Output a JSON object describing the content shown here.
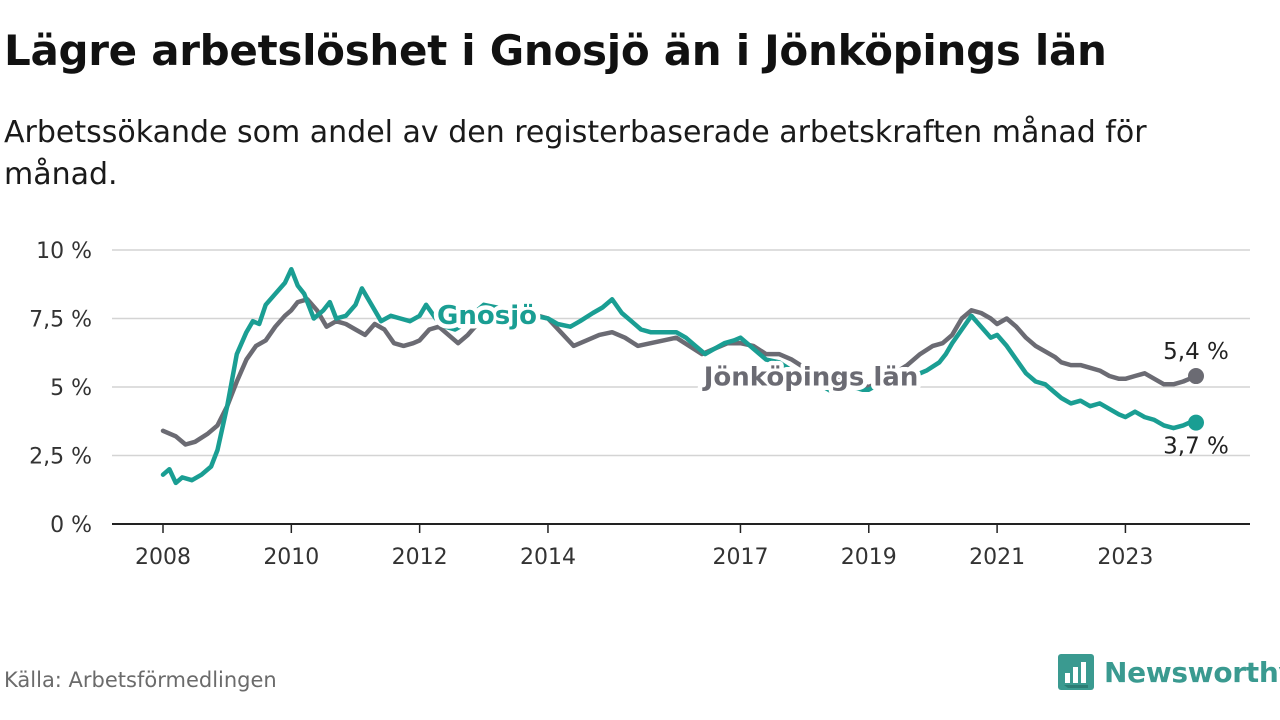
{
  "title": "Lägre arbetslöshet i Gnosjö än i Jönköpings län",
  "subtitle": "Arbetssökande som andel av den registerbaserade arbetskraften månad för månad.",
  "source": "Källa: Arbetsförmedlingen",
  "brand": {
    "name": "Newsworthy",
    "icon": "newsworthy-logo-icon",
    "color": "#3a9a90"
  },
  "colors": {
    "gnosjo": "#1a9e93",
    "lan": "#6b6b73",
    "grid": "#d4d4d4",
    "axis": "#222222"
  },
  "chart_data": {
    "type": "line",
    "title": "Lägre arbetslöshet i Gnosjö än i Jönköpings län",
    "xlabel": "",
    "ylabel": "",
    "xlim": [
      2008.0,
      2024.8
    ],
    "ylim": [
      0,
      10
    ],
    "yticks": [
      {
        "value": 0,
        "label": "0 %"
      },
      {
        "value": 2.5,
        "label": "2,5 %"
      },
      {
        "value": 5,
        "label": "5 %"
      },
      {
        "value": 7.5,
        "label": "7,5 %"
      },
      {
        "value": 10,
        "label": "10 %"
      }
    ],
    "xticks": [
      {
        "value": 2008.0,
        "label": "2008"
      },
      {
        "value": 2010.0,
        "label": "2010"
      },
      {
        "value": 2012.0,
        "label": "2012"
      },
      {
        "value": 2014.0,
        "label": "2014"
      },
      {
        "value": 2017.0,
        "label": "2017"
      },
      {
        "value": 2019.0,
        "label": "2019"
      },
      {
        "value": 2021.0,
        "label": "2021"
      },
      {
        "value": 2023.0,
        "label": "2023"
      }
    ],
    "grid": true,
    "series": [
      {
        "name": "Jönköpings län",
        "label": "Jönköpings län",
        "end_label": "5,4 %",
        "end_value": 5.4,
        "points": [
          [
            2008.0,
            3.4
          ],
          [
            2008.2,
            3.2
          ],
          [
            2008.35,
            2.9
          ],
          [
            2008.5,
            3.0
          ],
          [
            2008.7,
            3.3
          ],
          [
            2008.85,
            3.6
          ],
          [
            2009.0,
            4.3
          ],
          [
            2009.15,
            5.2
          ],
          [
            2009.3,
            6.0
          ],
          [
            2009.45,
            6.5
          ],
          [
            2009.6,
            6.7
          ],
          [
            2009.75,
            7.2
          ],
          [
            2009.9,
            7.6
          ],
          [
            2010.0,
            7.8
          ],
          [
            2010.1,
            8.1
          ],
          [
            2010.25,
            8.2
          ],
          [
            2010.4,
            7.8
          ],
          [
            2010.55,
            7.2
          ],
          [
            2010.7,
            7.4
          ],
          [
            2010.85,
            7.3
          ],
          [
            2011.0,
            7.1
          ],
          [
            2011.15,
            6.9
          ],
          [
            2011.3,
            7.3
          ],
          [
            2011.45,
            7.1
          ],
          [
            2011.6,
            6.6
          ],
          [
            2011.75,
            6.5
          ],
          [
            2011.9,
            6.6
          ],
          [
            2012.0,
            6.7
          ],
          [
            2012.15,
            7.1
          ],
          [
            2012.3,
            7.2
          ],
          [
            2012.45,
            6.9
          ],
          [
            2012.6,
            6.6
          ],
          [
            2012.75,
            6.9
          ],
          [
            2012.9,
            7.3
          ],
          [
            2013.1,
            7.5
          ],
          [
            2013.4,
            7.6
          ],
          [
            2013.7,
            7.7
          ],
          [
            2014.0,
            7.5
          ],
          [
            2014.2,
            7.0
          ],
          [
            2014.4,
            6.5
          ],
          [
            2014.6,
            6.7
          ],
          [
            2014.8,
            6.9
          ],
          [
            2015.0,
            7.0
          ],
          [
            2015.2,
            6.8
          ],
          [
            2015.4,
            6.5
          ],
          [
            2015.6,
            6.6
          ],
          [
            2015.8,
            6.7
          ],
          [
            2016.0,
            6.8
          ],
          [
            2016.2,
            6.5
          ],
          [
            2016.4,
            6.2
          ],
          [
            2016.6,
            6.4
          ],
          [
            2016.8,
            6.6
          ],
          [
            2017.0,
            6.6
          ],
          [
            2017.2,
            6.5
          ],
          [
            2017.4,
            6.2
          ],
          [
            2017.6,
            6.2
          ],
          [
            2017.8,
            6.0
          ],
          [
            2018.0,
            5.7
          ],
          [
            2018.2,
            5.5
          ],
          [
            2018.4,
            5.3
          ],
          [
            2018.6,
            5.2
          ],
          [
            2018.8,
            5.1
          ],
          [
            2019.0,
            5.0
          ],
          [
            2019.2,
            5.2
          ],
          [
            2019.4,
            5.5
          ],
          [
            2019.6,
            5.8
          ],
          [
            2019.8,
            6.2
          ],
          [
            2020.0,
            6.5
          ],
          [
            2020.15,
            6.6
          ],
          [
            2020.3,
            6.9
          ],
          [
            2020.45,
            7.5
          ],
          [
            2020.6,
            7.8
          ],
          [
            2020.75,
            7.7
          ],
          [
            2020.9,
            7.5
          ],
          [
            2021.0,
            7.3
          ],
          [
            2021.15,
            7.5
          ],
          [
            2021.3,
            7.2
          ],
          [
            2021.45,
            6.8
          ],
          [
            2021.6,
            6.5
          ],
          [
            2021.75,
            6.3
          ],
          [
            2021.9,
            6.1
          ],
          [
            2022.0,
            5.9
          ],
          [
            2022.15,
            5.8
          ],
          [
            2022.3,
            5.8
          ],
          [
            2022.45,
            5.7
          ],
          [
            2022.6,
            5.6
          ],
          [
            2022.75,
            5.4
          ],
          [
            2022.9,
            5.3
          ],
          [
            2023.0,
            5.3
          ],
          [
            2023.15,
            5.4
          ],
          [
            2023.3,
            5.5
          ],
          [
            2023.45,
            5.3
          ],
          [
            2023.6,
            5.1
          ],
          [
            2023.75,
            5.1
          ],
          [
            2023.9,
            5.2
          ],
          [
            2024.0,
            5.3
          ],
          [
            2024.1,
            5.4
          ]
        ]
      },
      {
        "name": "Gnosjö",
        "label": "Gnosjö",
        "end_label": "3,7 %",
        "end_value": 3.7,
        "points": [
          [
            2008.0,
            1.8
          ],
          [
            2008.1,
            2.0
          ],
          [
            2008.2,
            1.5
          ],
          [
            2008.3,
            1.7
          ],
          [
            2008.45,
            1.6
          ],
          [
            2008.6,
            1.8
          ],
          [
            2008.75,
            2.1
          ],
          [
            2008.85,
            2.7
          ],
          [
            2009.0,
            4.3
          ],
          [
            2009.15,
            6.2
          ],
          [
            2009.3,
            7.0
          ],
          [
            2009.4,
            7.4
          ],
          [
            2009.5,
            7.3
          ],
          [
            2009.6,
            8.0
          ],
          [
            2009.75,
            8.4
          ],
          [
            2009.9,
            8.8
          ],
          [
            2010.0,
            9.3
          ],
          [
            2010.1,
            8.7
          ],
          [
            2010.2,
            8.4
          ],
          [
            2010.35,
            7.5
          ],
          [
            2010.5,
            7.8
          ],
          [
            2010.6,
            8.1
          ],
          [
            2010.7,
            7.5
          ],
          [
            2010.85,
            7.6
          ],
          [
            2011.0,
            8.0
          ],
          [
            2011.1,
            8.6
          ],
          [
            2011.25,
            8.0
          ],
          [
            2011.4,
            7.4
          ],
          [
            2011.55,
            7.6
          ],
          [
            2011.7,
            7.5
          ],
          [
            2011.85,
            7.4
          ],
          [
            2012.0,
            7.6
          ],
          [
            2012.1,
            8.0
          ],
          [
            2012.25,
            7.5
          ],
          [
            2012.4,
            7.2
          ],
          [
            2012.55,
            7.1
          ],
          [
            2012.7,
            7.3
          ],
          [
            2012.85,
            7.7
          ],
          [
            2013.0,
            8.0
          ],
          [
            2013.2,
            7.9
          ],
          [
            2013.4,
            7.7
          ],
          [
            2013.6,
            7.8
          ],
          [
            2013.8,
            7.6
          ],
          [
            2014.0,
            7.5
          ],
          [
            2014.15,
            7.3
          ],
          [
            2014.35,
            7.2
          ],
          [
            2014.5,
            7.4
          ],
          [
            2014.7,
            7.7
          ],
          [
            2014.85,
            7.9
          ],
          [
            2015.0,
            8.2
          ],
          [
            2015.15,
            7.7
          ],
          [
            2015.3,
            7.4
          ],
          [
            2015.45,
            7.1
          ],
          [
            2015.6,
            7.0
          ],
          [
            2015.8,
            7.0
          ],
          [
            2016.0,
            7.0
          ],
          [
            2016.15,
            6.8
          ],
          [
            2016.3,
            6.5
          ],
          [
            2016.45,
            6.2
          ],
          [
            2016.6,
            6.4
          ],
          [
            2016.75,
            6.6
          ],
          [
            2016.9,
            6.7
          ],
          [
            2017.0,
            6.8
          ],
          [
            2017.2,
            6.4
          ],
          [
            2017.4,
            6.0
          ],
          [
            2017.6,
            5.9
          ],
          [
            2017.8,
            5.6
          ],
          [
            2018.0,
            5.5
          ],
          [
            2018.15,
            5.2
          ],
          [
            2018.3,
            5.0
          ],
          [
            2018.45,
            4.8
          ],
          [
            2018.6,
            5.0
          ],
          [
            2018.75,
            5.0
          ],
          [
            2018.9,
            4.9
          ],
          [
            2019.0,
            4.9
          ],
          [
            2019.15,
            5.1
          ],
          [
            2019.3,
            5.2
          ],
          [
            2019.5,
            5.3
          ],
          [
            2019.7,
            5.4
          ],
          [
            2019.9,
            5.6
          ],
          [
            2020.1,
            5.9
          ],
          [
            2020.2,
            6.2
          ],
          [
            2020.3,
            6.6
          ],
          [
            2020.45,
            7.1
          ],
          [
            2020.6,
            7.6
          ],
          [
            2020.75,
            7.2
          ],
          [
            2020.9,
            6.8
          ],
          [
            2021.0,
            6.9
          ],
          [
            2021.15,
            6.5
          ],
          [
            2021.3,
            6.0
          ],
          [
            2021.45,
            5.5
          ],
          [
            2021.6,
            5.2
          ],
          [
            2021.75,
            5.1
          ],
          [
            2021.9,
            4.8
          ],
          [
            2022.0,
            4.6
          ],
          [
            2022.15,
            4.4
          ],
          [
            2022.3,
            4.5
          ],
          [
            2022.45,
            4.3
          ],
          [
            2022.6,
            4.4
          ],
          [
            2022.75,
            4.2
          ],
          [
            2022.9,
            4.0
          ],
          [
            2023.0,
            3.9
          ],
          [
            2023.15,
            4.1
          ],
          [
            2023.3,
            3.9
          ],
          [
            2023.45,
            3.8
          ],
          [
            2023.6,
            3.6
          ],
          [
            2023.75,
            3.5
          ],
          [
            2023.9,
            3.6
          ],
          [
            2024.0,
            3.7
          ],
          [
            2024.1,
            3.7
          ]
        ]
      }
    ]
  }
}
